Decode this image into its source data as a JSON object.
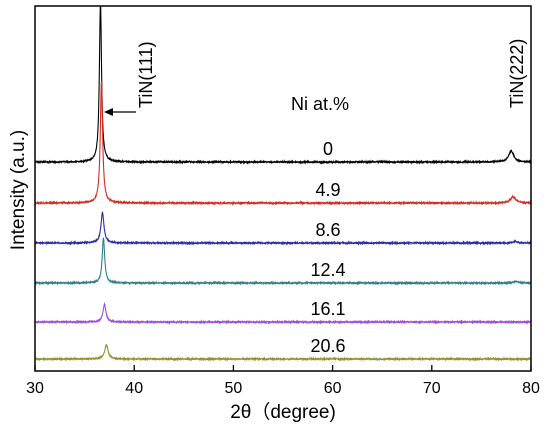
{
  "chart_data": {
    "type": "line",
    "title": "",
    "xlabel": "2θ（degree)",
    "ylabel": "Intensity (a.u.)",
    "xlim": [
      30,
      80
    ],
    "xticks": [
      30,
      40,
      50,
      60,
      70,
      80
    ],
    "y_ticks_shown": false,
    "grid": false,
    "legend": "none",
    "legend_title": "Ni at.%",
    "series": [
      {
        "name": "0",
        "color": "#000000",
        "peaks": [
          {
            "x": 36.6,
            "height": 1.0,
            "width": 0.13
          },
          {
            "x": 78.0,
            "height": 0.07,
            "width": 0.3
          }
        ]
      },
      {
        "name": "4.9",
        "color": "#d62a20",
        "peaks": [
          {
            "x": 36.7,
            "height": 0.76,
            "width": 0.14
          },
          {
            "x": 78.2,
            "height": 0.04,
            "width": 0.3
          }
        ]
      },
      {
        "name": "8.6",
        "color": "#2b2ba4",
        "peaks": [
          {
            "x": 36.8,
            "height": 0.19,
            "width": 0.18
          },
          {
            "x": 78.4,
            "height": 0.01,
            "width": 0.3
          }
        ]
      },
      {
        "name": "12.4",
        "color": "#2f7f86",
        "peaks": [
          {
            "x": 36.9,
            "height": 0.28,
            "width": 0.15
          },
          {
            "x": 78.5,
            "height": 0.01,
            "width": 0.3
          }
        ]
      },
      {
        "name": "16.1",
        "color": "#9c4fd6",
        "peaks": [
          {
            "x": 37.0,
            "height": 0.11,
            "width": 0.18
          }
        ]
      },
      {
        "name": "20.6",
        "color": "#8c9628",
        "peaks": [
          {
            "x": 37.2,
            "height": 0.09,
            "width": 0.2
          }
        ]
      }
    ],
    "annotations": {
      "peak_label_1": "TiN(111)",
      "peak_label_2": "TiN(222)"
    }
  }
}
